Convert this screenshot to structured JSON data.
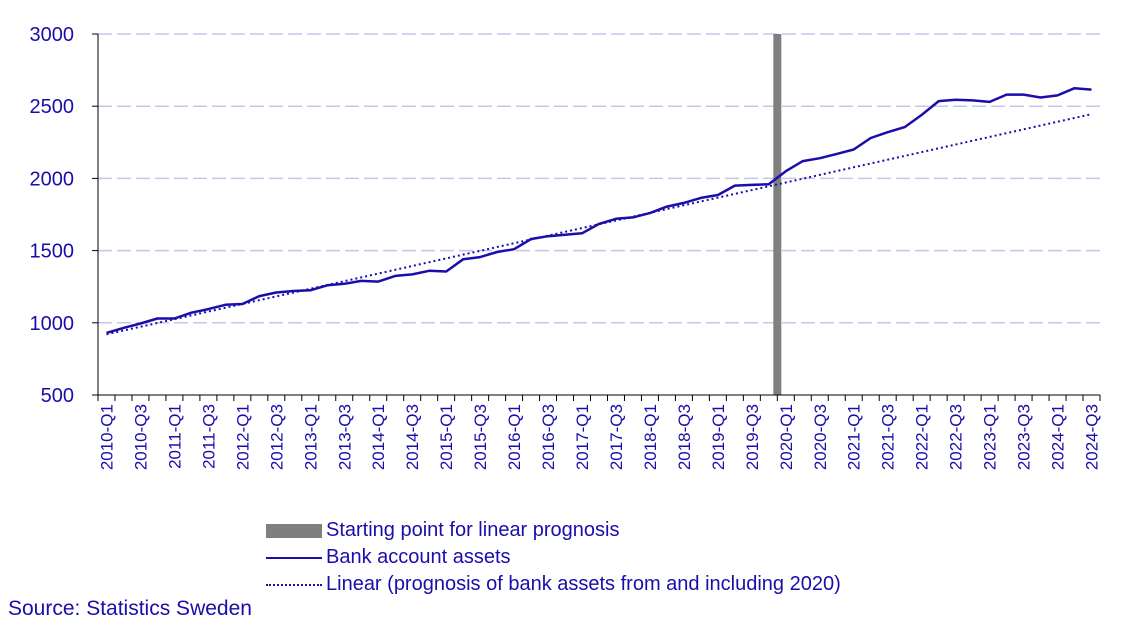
{
  "chart_data": {
    "type": "line",
    "ylim": [
      500,
      3000
    ],
    "yticks": [
      "500",
      "1000",
      "1500",
      "2000",
      "2500",
      "3000"
    ],
    "grid": true,
    "legend_position": "bottom",
    "x": [
      "2010-Q1",
      "2010-Q2",
      "2010-Q3",
      "2010-Q4",
      "2011-Q1",
      "2011-Q2",
      "2011-Q3",
      "2011-Q4",
      "2012-Q1",
      "2012-Q2",
      "2012-Q3",
      "2012-Q4",
      "2013-Q1",
      "2013-Q2",
      "2013-Q3",
      "2013-Q4",
      "2014-Q1",
      "2014-Q2",
      "2014-Q3",
      "2014-Q4",
      "2015-Q1",
      "2015-Q2",
      "2015-Q3",
      "2015-Q4",
      "2016-Q1",
      "2016-Q2",
      "2016-Q3",
      "2016-Q4",
      "2017-Q1",
      "2017-Q2",
      "2017-Q3",
      "2017-Q4",
      "2018-Q1",
      "2018-Q2",
      "2018-Q3",
      "2018-Q4",
      "2019-Q1",
      "2019-Q2",
      "2019-Q3",
      "2019-Q4",
      "2020-Q1",
      "2020-Q2",
      "2020-Q3",
      "2020-Q4",
      "2021-Q1",
      "2021-Q2",
      "2021-Q3",
      "2021-Q4",
      "2022-Q1",
      "2022-Q2",
      "2022-Q3",
      "2022-Q4",
      "2023-Q1",
      "2023-Q2",
      "2023-Q3",
      "2023-Q4",
      "2024-Q1",
      "2024-Q2",
      "2024-Q3"
    ],
    "xtick_labels": [
      "2010-Q1",
      "2010-Q3",
      "2011-Q1",
      "2011-Q3",
      "2012-Q1",
      "2012-Q3",
      "2013-Q1",
      "2013-Q3",
      "2014-Q1",
      "2014-Q3",
      "2015-Q1",
      "2015-Q3",
      "2016-Q1",
      "2016-Q3",
      "2017-Q1",
      "2017-Q3",
      "2018-Q1",
      "2018-Q3",
      "2019-Q1",
      "2019-Q3",
      "2020-Q1",
      "2020-Q3",
      "2021-Q1",
      "2021-Q3",
      "2022-Q1",
      "2022-Q3",
      "2023-Q1",
      "2023-Q3",
      "2024-Q1",
      "2024-Q3"
    ],
    "series": [
      {
        "name": "Bank account assets",
        "style": "solid",
        "color": "#1a0dab",
        "values": [
          930,
          965,
          995,
          1030,
          1030,
          1070,
          1095,
          1125,
          1130,
          1185,
          1210,
          1220,
          1225,
          1260,
          1270,
          1290,
          1285,
          1325,
          1335,
          1360,
          1355,
          1440,
          1455,
          1490,
          1510,
          1580,
          1600,
          1610,
          1620,
          1685,
          1720,
          1730,
          1760,
          1805,
          1830,
          1865,
          1885,
          1950,
          1955,
          1960,
          2050,
          2120,
          2140,
          2170,
          2200,
          2280,
          2320,
          2355,
          2440,
          2535,
          2545,
          2540,
          2530,
          2580,
          2580,
          2560,
          2575,
          2625,
          2615
        ]
      },
      {
        "name": "Linear (prognosis of bank assets from and including 2020)",
        "style": "dotted",
        "color": "#1a0dab",
        "start": 920,
        "end": 2445
      }
    ],
    "marker": {
      "name": "Starting point for linear prognosis",
      "color": "#7f7f7f",
      "between": [
        "2019-Q4",
        "2020-Q1"
      ]
    }
  },
  "legend": {
    "bar_label": "Starting point for linear prognosis",
    "line_label": "Bank account assets",
    "dotted_label": "Linear (prognosis of bank assets from and including 2020)"
  },
  "source": "Source: Statistics Sweden"
}
